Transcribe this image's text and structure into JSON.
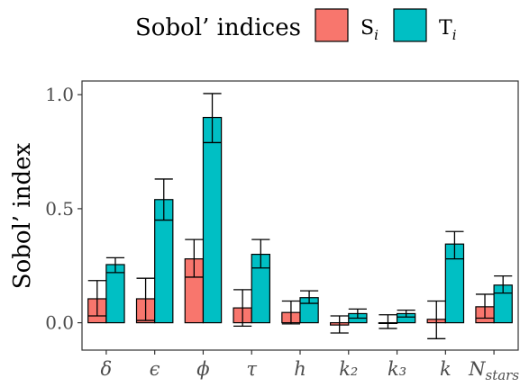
{
  "chart_data": {
    "type": "bar",
    "title": "",
    "xlabel": "",
    "ylabel": "Sobol’ index",
    "ylim": [
      -0.12,
      1.06
    ],
    "yticks": [
      0.0,
      0.5,
      1.0
    ],
    "ytick_labels": [
      "0.0",
      "0.5",
      "1.0"
    ],
    "categories": [
      "δ",
      "ϵ",
      "ϕ",
      "τ",
      "h",
      "k₂",
      "k₃",
      "k",
      "N_stars"
    ],
    "legend": {
      "title": "Sobol’ indices",
      "position": "top"
    },
    "series": [
      {
        "name": "S_i",
        "label_main": "S",
        "label_sub": "i",
        "color": "#F8766D",
        "values": [
          0.105,
          0.105,
          0.28,
          0.065,
          0.045,
          -0.01,
          0.0,
          0.015,
          0.07
        ],
        "err_low": [
          0.03,
          0.01,
          0.2,
          -0.015,
          -0.005,
          -0.045,
          -0.025,
          -0.07,
          0.02
        ],
        "err_high": [
          0.185,
          0.195,
          0.365,
          0.145,
          0.095,
          0.03,
          0.035,
          0.095,
          0.125
        ]
      },
      {
        "name": "T_i",
        "label_main": "T",
        "label_sub": "i",
        "color": "#00BFC4",
        "values": [
          0.255,
          0.54,
          0.9,
          0.3,
          0.11,
          0.04,
          0.04,
          0.345,
          0.165
        ],
        "err_low": [
          0.22,
          0.45,
          0.79,
          0.24,
          0.085,
          0.02,
          0.025,
          0.28,
          0.13
        ],
        "err_high": [
          0.285,
          0.63,
          1.005,
          0.365,
          0.14,
          0.06,
          0.055,
          0.4,
          0.205
        ]
      }
    ]
  }
}
